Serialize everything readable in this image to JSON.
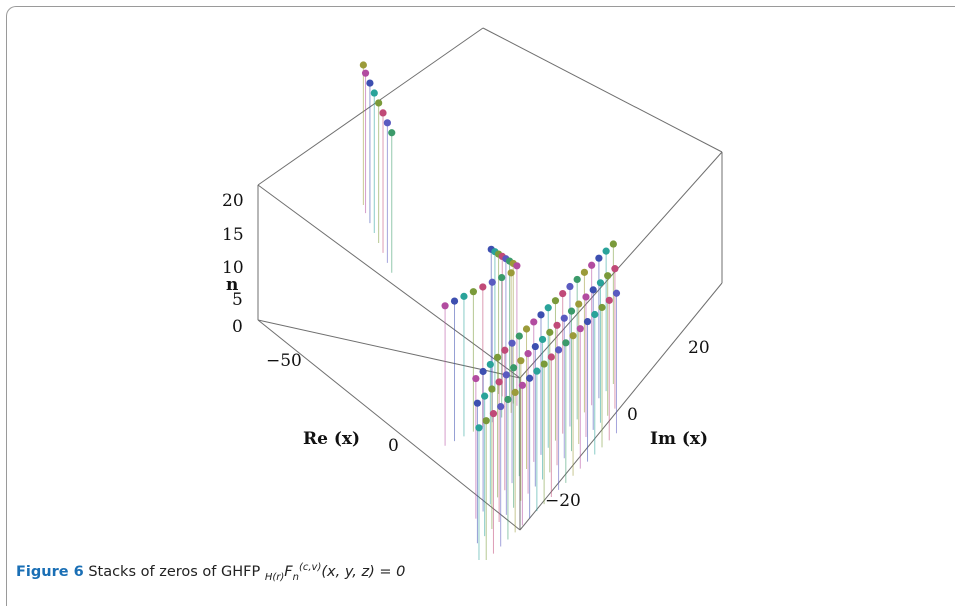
{
  "caption": {
    "label": "Figure 6",
    "text": "Stacks of zeros of GHFP",
    "formula_sub_left": "H(r)",
    "formula_main": "F",
    "formula_sub": "n",
    "formula_sup": "(c,v)",
    "formula_args": "(x, y, z) = 0"
  },
  "chart_data": {
    "type": "scatter",
    "projection": "3d",
    "style": "stem points (vertical drop lines to base plane)",
    "axes": {
      "x": {
        "label": "Re (x)",
        "ticks": [
          "−50",
          "0"
        ],
        "range": [
          -80,
          40
        ]
      },
      "y": {
        "label": "Im (x)",
        "ticks": [
          "−20",
          "0",
          "20"
        ],
        "range": [
          -35,
          35
        ]
      },
      "z": {
        "label": "n",
        "ticks": [
          "0",
          "5",
          "10",
          "15",
          "20"
        ],
        "range": [
          0,
          21
        ]
      }
    },
    "grid": false,
    "colors": [
      "#9b9b3a",
      "#b24ca0",
      "#3d4fb0",
      "#2aa39a",
      "#7a9a3a",
      "#c04a78",
      "#5a5ac0",
      "#3b9a6a"
    ],
    "series": [
      {
        "points": [
          [
            -78,
            0,
            21
          ],
          [
            -77,
            0,
            20
          ],
          [
            -75,
            0,
            19
          ],
          [
            -73,
            0,
            18
          ],
          [
            -71,
            0,
            17
          ],
          [
            -69,
            0,
            16
          ],
          [
            -67,
            0,
            15
          ],
          [
            -65,
            0,
            14
          ]
        ]
      },
      {
        "points": [
          [
            -30,
            -8,
            1
          ],
          [
            -27,
            -7,
            2
          ],
          [
            -24,
            -6,
            3
          ],
          [
            -21,
            -5,
            4
          ],
          [
            -18,
            -4,
            5
          ],
          [
            -15,
            -3,
            6
          ],
          [
            -12,
            -2,
            7
          ],
          [
            -9,
            -1,
            8
          ]
        ]
      },
      {
        "points": [
          [
            -30,
            8,
            1
          ],
          [
            -27,
            7,
            2
          ],
          [
            -24,
            6,
            3
          ],
          [
            -21,
            5,
            4
          ],
          [
            -18,
            4,
            5
          ],
          [
            -15,
            3,
            6
          ],
          [
            -12,
            2,
            7
          ],
          [
            -9,
            1,
            8
          ]
        ]
      }
    ]
  }
}
